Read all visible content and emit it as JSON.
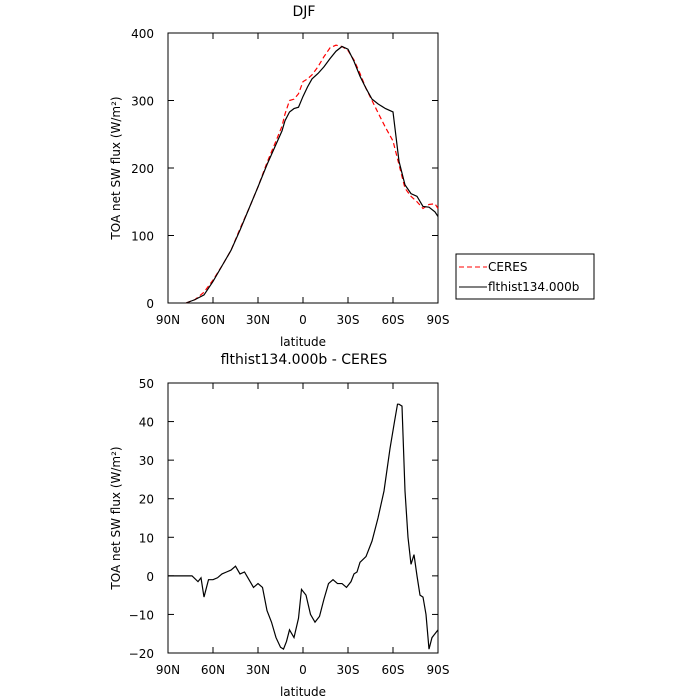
{
  "chart_data": [
    {
      "type": "line",
      "title": "DJF",
      "xlabel": "latitude",
      "ylabel": "TOA net SW flux (W/m²)",
      "xlim": [
        90,
        -90
      ],
      "ylim": [
        0,
        400
      ],
      "xticks": [
        90,
        60,
        30,
        0,
        -30,
        -60,
        -90
      ],
      "xticklabels": [
        "90N",
        "60N",
        "30N",
        "0",
        "30S",
        "60S",
        "90S"
      ],
      "yticks": [
        0,
        100,
        200,
        300,
        400
      ],
      "yticklabels": [
        "0",
        "100",
        "200",
        "300",
        "400"
      ],
      "grid": false,
      "legend": "outside-right",
      "series": [
        {
          "name": "CERES",
          "color": "#ff0000",
          "dash": "dashed",
          "x": [
            78,
            72,
            66,
            60,
            54,
            48,
            42,
            36,
            30,
            24,
            18,
            14,
            12,
            9,
            6,
            3,
            0,
            -3,
            -6,
            -10,
            -14,
            -18,
            -22,
            -26,
            -30,
            -34,
            -38,
            -42,
            -46,
            -50,
            -55,
            -60,
            -64,
            -68,
            -72,
            -76,
            -80,
            -84,
            -88,
            -90
          ],
          "y": [
            0,
            5,
            16,
            34,
            55,
            78,
            110,
            140,
            172,
            208,
            240,
            262,
            280,
            300,
            302,
            310,
            328,
            332,
            338,
            350,
            365,
            378,
            382,
            380,
            374,
            360,
            340,
            318,
            300,
            282,
            260,
            240,
            205,
            170,
            158,
            150,
            140,
            146,
            147,
            140
          ]
        },
        {
          "name": "flthist134.000b",
          "color": "#000000",
          "dash": "solid",
          "x": [
            78,
            72,
            66,
            60,
            54,
            48,
            42,
            36,
            30,
            24,
            18,
            14,
            12,
            9,
            6,
            3,
            0,
            -3,
            -6,
            -10,
            -14,
            -18,
            -22,
            -26,
            -30,
            -34,
            -38,
            -42,
            -46,
            -50,
            -55,
            -60,
            -64,
            -68,
            -72,
            -76,
            -80,
            -84,
            -88,
            -90
          ],
          "y": [
            0,
            5,
            12,
            32,
            55,
            78,
            108,
            140,
            172,
            205,
            235,
            255,
            270,
            283,
            288,
            290,
            306,
            320,
            332,
            340,
            350,
            362,
            373,
            380,
            376,
            358,
            336,
            318,
            302,
            295,
            288,
            283,
            210,
            175,
            162,
            158,
            143,
            142,
            135,
            128
          ]
        }
      ]
    },
    {
      "type": "line",
      "title": "flthist134.000b - CERES",
      "xlabel": "latitude",
      "ylabel": "TOA net SW flux (W/m²)",
      "xlim": [
        90,
        -90
      ],
      "ylim": [
        -20,
        50
      ],
      "xticks": [
        90,
        60,
        30,
        0,
        -30,
        -60,
        -90
      ],
      "xticklabels": [
        "90N",
        "60N",
        "30N",
        "0",
        "30S",
        "60S",
        "90S"
      ],
      "yticks": [
        -20,
        -10,
        0,
        10,
        20,
        30,
        40,
        50
      ],
      "yticklabels": [
        "−20",
        "−10",
        "0",
        "10",
        "20",
        "30",
        "40",
        "50"
      ],
      "grid": false,
      "series": [
        {
          "name": "",
          "color": "#000000",
          "dash": "solid",
          "x": [
            90,
            80,
            74,
            70,
            68,
            66,
            63,
            60,
            57,
            54,
            51,
            48,
            45,
            42,
            39,
            36,
            33,
            30,
            27,
            24,
            21,
            18,
            15,
            13,
            11,
            9,
            6,
            3,
            1,
            -2,
            -5,
            -8,
            -11,
            -14,
            -17,
            -20,
            -23,
            -26,
            -29,
            -32,
            -34,
            -36,
            -38,
            -42,
            -46,
            -50,
            -54,
            -58,
            -61,
            -63,
            -64,
            -66,
            -68,
            -70,
            -72,
            -74,
            -76,
            -78,
            -80,
            -82,
            -84,
            -86,
            -88,
            -90
          ],
          "y": [
            0,
            0,
            0,
            -1.5,
            -0.5,
            -5.5,
            -1,
            -1,
            -0.5,
            0.5,
            1,
            1.5,
            2.5,
            0.5,
            1,
            -1,
            -3,
            -2,
            -3,
            -9,
            -12,
            -16,
            -18.5,
            -19,
            -17,
            -14,
            -16,
            -11,
            -3.5,
            -5,
            -10,
            -12,
            -10.5,
            -6,
            -2,
            -1,
            -2,
            -2,
            -3,
            -1.5,
            0.5,
            1,
            3.5,
            5,
            9,
            15,
            22,
            33,
            40,
            44.5,
            44.5,
            44,
            22,
            10,
            3,
            5.5,
            0,
            -5,
            -5.5,
            -10,
            -19,
            -16,
            -15,
            -14
          ]
        }
      ]
    }
  ]
}
